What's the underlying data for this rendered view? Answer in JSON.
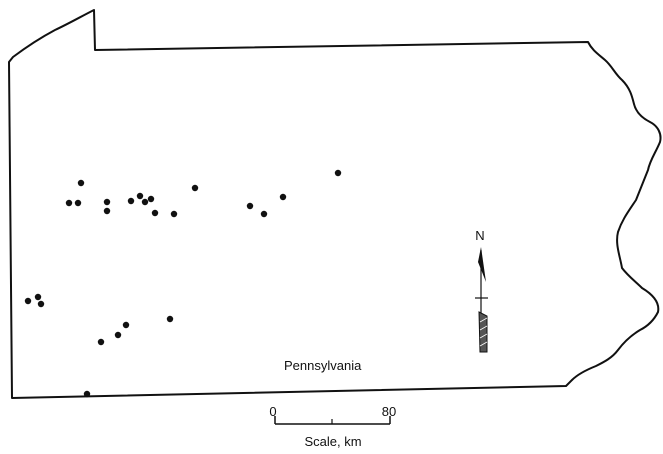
{
  "map": {
    "state_label": "Pennsylvania",
    "north_label": "N",
    "scale": {
      "start_label": "0",
      "end_label": "80",
      "caption": "Scale, km"
    }
  },
  "colors": {
    "ink": "#111111",
    "background": "#ffffff"
  }
}
